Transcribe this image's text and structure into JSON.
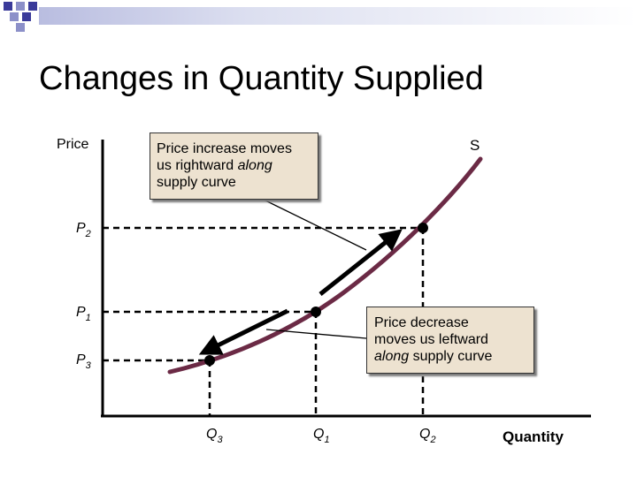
{
  "title": "Changes in Quantity Supplied",
  "axes": {
    "y_label": "Price",
    "x_label": "Quantity",
    "curve_label": "S"
  },
  "price_levels": [
    {
      "base": "P",
      "sub": "2"
    },
    {
      "base": "P",
      "sub": "1"
    },
    {
      "base": "P",
      "sub": "3"
    }
  ],
  "quantity_levels": [
    {
      "base": "Q",
      "sub": "3"
    },
    {
      "base": "Q",
      "sub": "1"
    },
    {
      "base": "Q",
      "sub": "2"
    }
  ],
  "callouts": {
    "increase": {
      "line1": "Price increase moves",
      "line2a": "us rightward ",
      "line2b": "along",
      "line3": "supply curve"
    },
    "decrease": {
      "line1": "Price decrease",
      "line2": "moves us leftward",
      "line3a": "along",
      "line3b": " supply curve"
    }
  },
  "colors": {
    "curve": "#6b2a45",
    "callout_bg": "#ede2d0",
    "band_start": "#3a3a9a"
  }
}
